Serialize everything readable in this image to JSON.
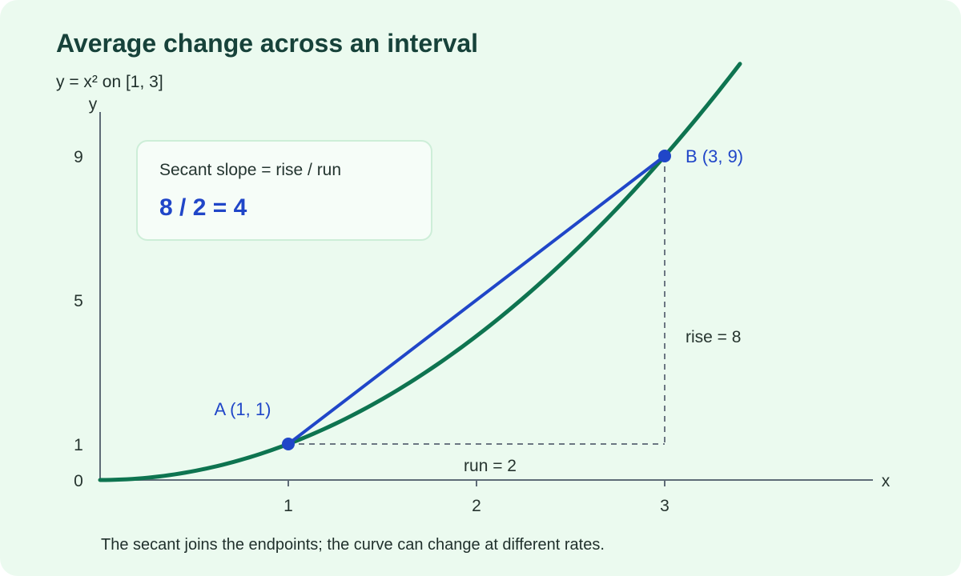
{
  "title": "Average change across an interval",
  "subtitle": "y = x² on [1, 3]",
  "caption": "The secant joins the endpoints; the curve can change at different rates.",
  "slope_box": {
    "label": "Secant slope = rise / run",
    "value": "8 / 2 = 4"
  },
  "colors": {
    "curve": "#0e7450",
    "secant": "#2046c8",
    "axis": "#5e6b77",
    "guide": "#6b7682"
  },
  "chart_data": {
    "type": "line",
    "function": "y = x^2",
    "xlabel": "x",
    "ylabel": "y",
    "xlim": [
      0,
      4
    ],
    "ylim": [
      0,
      9
    ],
    "x_ticks": [
      1,
      2,
      3
    ],
    "y_ticks": [
      0,
      1,
      5,
      9
    ],
    "x_tick_labels": [
      "1",
      "2",
      "3"
    ],
    "y_tick_labels": [
      "0",
      "1",
      "5",
      "9"
    ],
    "series": [
      {
        "type": "curve",
        "x_range": [
          0,
          3.4
        ]
      },
      {
        "type": "secant",
        "x": [
          1,
          3
        ],
        "y": [
          1,
          9
        ]
      }
    ],
    "points": [
      {
        "label": "A (1, 1)",
        "x": 1,
        "y": 1
      },
      {
        "label": "B (3, 9)",
        "x": 3,
        "y": 9
      }
    ],
    "annotations": {
      "run": "run = 2",
      "rise": "rise = 8"
    }
  }
}
